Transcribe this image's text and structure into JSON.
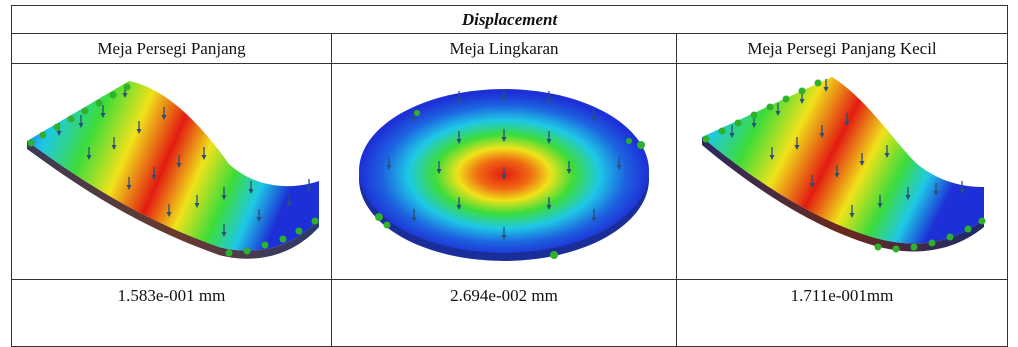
{
  "table": {
    "title": "Displacement",
    "columns": [
      {
        "header": "Meja Persegi Panjang",
        "value": "1.583e-001 mm",
        "figure": "rectangular-table-displacement-plot"
      },
      {
        "header": "Meja Lingkaran",
        "value": "2.694e-002 mm",
        "figure": "circular-table-displacement-plot"
      },
      {
        "header": "Meja Persegi Panjang Kecil",
        "value": "1.711e-001mm",
        "figure": "small-rectangular-table-displacement-plot"
      }
    ]
  },
  "colors": {
    "low": "#1d2fd6",
    "mid_low": "#1ec8e6",
    "mid": "#3ddc3a",
    "mid_high": "#f0e21a",
    "high": "#e31b12",
    "fixture": "#2fb12c",
    "load_arrow": "#2a4f78"
  }
}
